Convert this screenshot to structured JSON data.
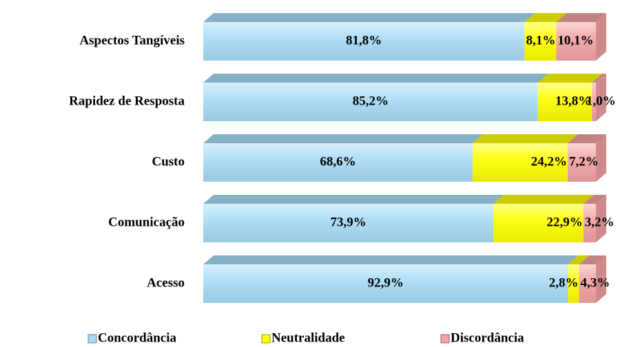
{
  "chart_data": {
    "type": "stacked-bar-horizontal",
    "categories": [
      "Aspectos Tangíveis",
      "Rapidez de Resposta",
      "Custo",
      "Comunicação",
      "Acesso"
    ],
    "series": [
      {
        "name": "Concordância",
        "color": "#a8dcf6",
        "values": [
          81.8,
          85.2,
          68.6,
          73.9,
          92.9
        ],
        "value_labels": [
          "81,8%",
          "85,2%",
          "68,6%",
          "73,9%",
          "92,9%"
        ]
      },
      {
        "name": "Neutralidade",
        "color": "#ffff00",
        "values": [
          8.1,
          13.8,
          24.2,
          22.9,
          2.8
        ],
        "value_labels": [
          "8,1%",
          "13,8%",
          "24,2%",
          "22,9%",
          "2,8%"
        ]
      },
      {
        "name": "Discordância",
        "color": "#f4a3a3",
        "values": [
          10.1,
          1.0,
          7.2,
          3.2,
          4.3
        ],
        "value_labels": [
          "10,1%",
          "1,0%",
          "7,2%",
          "3,2%",
          "4,3%"
        ]
      }
    ],
    "legend": "bottom"
  }
}
